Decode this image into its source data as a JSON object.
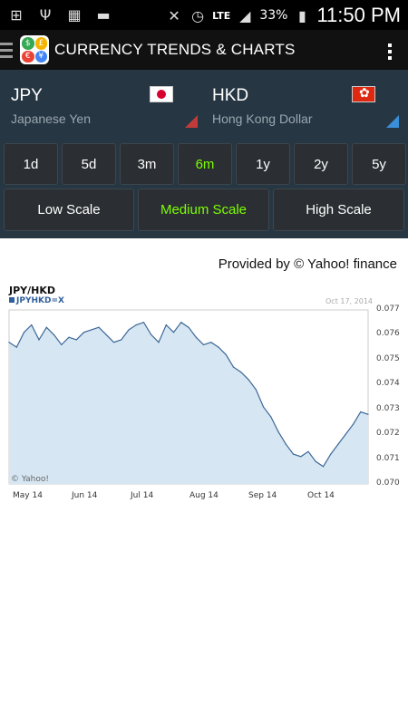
{
  "status_bar": {
    "icons": [
      "add-icon",
      "usb-icon",
      "app-icon",
      "money-icon",
      "muted-icon",
      "alarm-icon",
      "lte-icon",
      "signal-icon",
      "battery-icon"
    ],
    "network": "LTE",
    "battery": "33%",
    "time": "11:50 PM"
  },
  "app_bar": {
    "title": "CURRENCY TRENDS & CHARTS"
  },
  "base_currency": {
    "code": "JPY",
    "name": "Japanese Yen",
    "corner_color": "#c23b3b"
  },
  "target_currency": {
    "code": "HKD",
    "name": "Hong Kong Dollar",
    "corner_color": "#3a8fd8"
  },
  "periods": [
    {
      "label": "1d",
      "active": false
    },
    {
      "label": "5d",
      "active": false
    },
    {
      "label": "3m",
      "active": false
    },
    {
      "label": "6m",
      "active": true
    },
    {
      "label": "1y",
      "active": false
    },
    {
      "label": "2y",
      "active": false
    },
    {
      "label": "5y",
      "active": false
    }
  ],
  "scales": [
    {
      "label": "Low Scale",
      "active": false
    },
    {
      "label": "Medium Scale",
      "active": true
    },
    {
      "label": "High Scale",
      "active": false
    }
  ],
  "provider": "Provided by © Yahoo! finance",
  "colors": {
    "active": "#7cff00",
    "panel": "#263642",
    "line": "#3c6797",
    "fill": "#d6e6f2"
  },
  "chart_data": {
    "type": "area",
    "title": "JPY/HKD",
    "series_label": "JPYHKD=X",
    "date_label": "Oct 17, 2014",
    "watermark": "© Yahoo!",
    "ylim": [
      0.07,
      0.077
    ],
    "y_ticks": [
      "0.077",
      "0.076",
      "0.075",
      "0.074",
      "0.073",
      "0.072",
      "0.071",
      "0.070"
    ],
    "x_ticks": [
      "May 14",
      "Jun 14",
      "Jul 14",
      "Aug 14",
      "Sep 14",
      "Oct 14"
    ],
    "series": [
      {
        "name": "JPYHKD=X",
        "values": [
          0.0757,
          0.0755,
          0.0761,
          0.0764,
          0.0758,
          0.0763,
          0.076,
          0.0756,
          0.0759,
          0.0758,
          0.0761,
          0.0762,
          0.0763,
          0.076,
          0.0757,
          0.0758,
          0.0762,
          0.0764,
          0.0765,
          0.076,
          0.0757,
          0.0764,
          0.0761,
          0.0765,
          0.0763,
          0.0759,
          0.0756,
          0.0757,
          0.0755,
          0.0752,
          0.0747,
          0.0745,
          0.0742,
          0.0738,
          0.0731,
          0.0727,
          0.0721,
          0.0716,
          0.0712,
          0.0711,
          0.0713,
          0.0709,
          0.0707,
          0.0712,
          0.0716,
          0.072,
          0.0724,
          0.0729,
          0.0728
        ]
      }
    ]
  }
}
